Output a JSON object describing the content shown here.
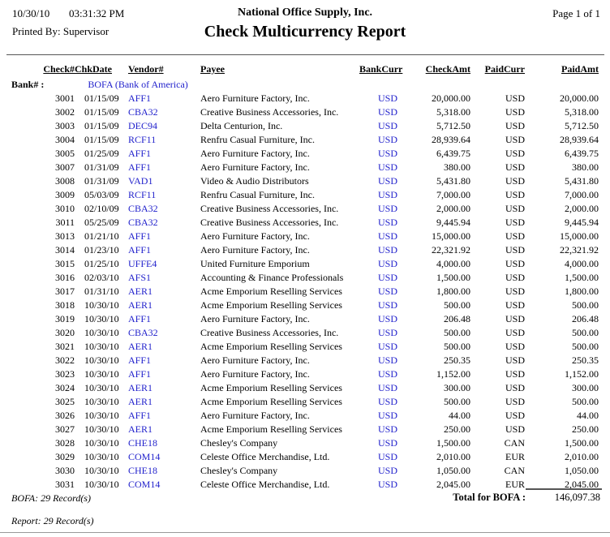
{
  "header": {
    "date": "10/30/10",
    "time": "03:31:32 PM",
    "company": "National Office Supply, Inc.",
    "page": "Page 1 of 1",
    "printed_by": "Printed By: Supervisor",
    "title": "Check Multicurrency Report"
  },
  "columns": [
    "Check#",
    "ChkDate",
    "Vendor#",
    "Payee",
    "BankCurr",
    "CheckAmt",
    "PaidCurr",
    "PaidAmt"
  ],
  "bank": {
    "label": "Bank# :",
    "name": "BOFA (Bank of America)"
  },
  "rows": [
    {
      "check": "3001",
      "date": "01/15/09",
      "vendor": "AFF1",
      "payee": "Aero Furniture Factory, Inc.",
      "bank_curr": "USD",
      "check_amt": "20,000.00",
      "paid_curr": "USD",
      "paid_amt": "20,000.00"
    },
    {
      "check": "3002",
      "date": "01/15/09",
      "vendor": "CBA32",
      "payee": "Creative Business Accessories, Inc.",
      "bank_curr": "USD",
      "check_amt": "5,318.00",
      "paid_curr": "USD",
      "paid_amt": "5,318.00"
    },
    {
      "check": "3003",
      "date": "01/15/09",
      "vendor": "DEC94",
      "payee": "Delta Centurion, Inc.",
      "bank_curr": "USD",
      "check_amt": "5,712.50",
      "paid_curr": "USD",
      "paid_amt": "5,712.50"
    },
    {
      "check": "3004",
      "date": "01/15/09",
      "vendor": "RCF11",
      "payee": "Renfru Casual Furniture, Inc.",
      "bank_curr": "USD",
      "check_amt": "28,939.64",
      "paid_curr": "USD",
      "paid_amt": "28,939.64"
    },
    {
      "check": "3005",
      "date": "01/25/09",
      "vendor": "AFF1",
      "payee": "Aero Furniture Factory, Inc.",
      "bank_curr": "USD",
      "check_amt": "6,439.75",
      "paid_curr": "USD",
      "paid_amt": "6,439.75"
    },
    {
      "check": "3007",
      "date": "01/31/09",
      "vendor": "AFF1",
      "payee": "Aero Furniture Factory, Inc.",
      "bank_curr": "USD",
      "check_amt": "380.00",
      "paid_curr": "USD",
      "paid_amt": "380.00"
    },
    {
      "check": "3008",
      "date": "01/31/09",
      "vendor": "VAD1",
      "payee": "Video & Audio Distributors",
      "bank_curr": "USD",
      "check_amt": "5,431.80",
      "paid_curr": "USD",
      "paid_amt": "5,431.80"
    },
    {
      "check": "3009",
      "date": "05/03/09",
      "vendor": "RCF11",
      "payee": "Renfru Casual Furniture, Inc.",
      "bank_curr": "USD",
      "check_amt": "7,000.00",
      "paid_curr": "USD",
      "paid_amt": "7,000.00"
    },
    {
      "check": "3010",
      "date": "02/10/09",
      "vendor": "CBA32",
      "payee": "Creative Business Accessories, Inc.",
      "bank_curr": "USD",
      "check_amt": "2,000.00",
      "paid_curr": "USD",
      "paid_amt": "2,000.00"
    },
    {
      "check": "3011",
      "date": "05/25/09",
      "vendor": "CBA32",
      "payee": "Creative Business Accessories, Inc.",
      "bank_curr": "USD",
      "check_amt": "9,445.94",
      "paid_curr": "USD",
      "paid_amt": "9,445.94"
    },
    {
      "check": "3013",
      "date": "01/21/10",
      "vendor": "AFF1",
      "payee": "Aero Furniture Factory, Inc.",
      "bank_curr": "USD",
      "check_amt": "15,000.00",
      "paid_curr": "USD",
      "paid_amt": "15,000.00"
    },
    {
      "check": "3014",
      "date": "01/23/10",
      "vendor": "AFF1",
      "payee": "Aero Furniture Factory, Inc.",
      "bank_curr": "USD",
      "check_amt": "22,321.92",
      "paid_curr": "USD",
      "paid_amt": "22,321.92"
    },
    {
      "check": "3015",
      "date": "01/25/10",
      "vendor": "UFFE4",
      "payee": "United Furniture Emporium",
      "bank_curr": "USD",
      "check_amt": "4,000.00",
      "paid_curr": "USD",
      "paid_amt": "4,000.00"
    },
    {
      "check": "3016",
      "date": "02/03/10",
      "vendor": "AFS1",
      "payee": "Accounting & Finance Professionals",
      "bank_curr": "USD",
      "check_amt": "1,500.00",
      "paid_curr": "USD",
      "paid_amt": "1,500.00"
    },
    {
      "check": "3017",
      "date": "01/31/10",
      "vendor": "AER1",
      "payee": "Acme Emporium Reselling Services",
      "bank_curr": "USD",
      "check_amt": "1,800.00",
      "paid_curr": "USD",
      "paid_amt": "1,800.00"
    },
    {
      "check": "3018",
      "date": "10/30/10",
      "vendor": "AER1",
      "payee": "Acme Emporium Reselling Services",
      "bank_curr": "USD",
      "check_amt": "500.00",
      "paid_curr": "USD",
      "paid_amt": "500.00"
    },
    {
      "check": "3019",
      "date": "10/30/10",
      "vendor": "AFF1",
      "payee": "Aero Furniture Factory, Inc.",
      "bank_curr": "USD",
      "check_amt": "206.48",
      "paid_curr": "USD",
      "paid_amt": "206.48"
    },
    {
      "check": "3020",
      "date": "10/30/10",
      "vendor": "CBA32",
      "payee": "Creative Business Accessories, Inc.",
      "bank_curr": "USD",
      "check_amt": "500.00",
      "paid_curr": "USD",
      "paid_amt": "500.00"
    },
    {
      "check": "3021",
      "date": "10/30/10",
      "vendor": "AER1",
      "payee": "Acme Emporium Reselling Services",
      "bank_curr": "USD",
      "check_amt": "500.00",
      "paid_curr": "USD",
      "paid_amt": "500.00"
    },
    {
      "check": "3022",
      "date": "10/30/10",
      "vendor": "AFF1",
      "payee": "Aero Furniture Factory, Inc.",
      "bank_curr": "USD",
      "check_amt": "250.35",
      "paid_curr": "USD",
      "paid_amt": "250.35"
    },
    {
      "check": "3023",
      "date": "10/30/10",
      "vendor": "AFF1",
      "payee": "Aero Furniture Factory, Inc.",
      "bank_curr": "USD",
      "check_amt": "1,152.00",
      "paid_curr": "USD",
      "paid_amt": "1,152.00"
    },
    {
      "check": "3024",
      "date": "10/30/10",
      "vendor": "AER1",
      "payee": "Acme Emporium Reselling Services",
      "bank_curr": "USD",
      "check_amt": "300.00",
      "paid_curr": "USD",
      "paid_amt": "300.00"
    },
    {
      "check": "3025",
      "date": "10/30/10",
      "vendor": "AER1",
      "payee": "Acme Emporium Reselling Services",
      "bank_curr": "USD",
      "check_amt": "500.00",
      "paid_curr": "USD",
      "paid_amt": "500.00"
    },
    {
      "check": "3026",
      "date": "10/30/10",
      "vendor": "AFF1",
      "payee": "Aero Furniture Factory, Inc.",
      "bank_curr": "USD",
      "check_amt": "44.00",
      "paid_curr": "USD",
      "paid_amt": "44.00"
    },
    {
      "check": "3027",
      "date": "10/30/10",
      "vendor": "AER1",
      "payee": "Acme Emporium Reselling Services",
      "bank_curr": "USD",
      "check_amt": "250.00",
      "paid_curr": "USD",
      "paid_amt": "250.00"
    },
    {
      "check": "3028",
      "date": "10/30/10",
      "vendor": "CHE18",
      "payee": "Chesley's Company",
      "bank_curr": "USD",
      "check_amt": "1,500.00",
      "paid_curr": "CAN",
      "paid_amt": "1,500.00"
    },
    {
      "check": "3029",
      "date": "10/30/10",
      "vendor": "COM14",
      "payee": "Celeste Office Merchandise, Ltd.",
      "bank_curr": "USD",
      "check_amt": "2,010.00",
      "paid_curr": "EUR",
      "paid_amt": "2,010.00"
    },
    {
      "check": "3030",
      "date": "10/30/10",
      "vendor": "CHE18",
      "payee": "Chesley's Company",
      "bank_curr": "USD",
      "check_amt": "1,050.00",
      "paid_curr": "CAN",
      "paid_amt": "1,050.00"
    },
    {
      "check": "3031",
      "date": "10/30/10",
      "vendor": "COM14",
      "payee": "Celeste Office Merchandise, Ltd.",
      "bank_curr": "USD",
      "check_amt": "2,045.00",
      "paid_curr": "EUR",
      "paid_amt": "2,045.00"
    }
  ],
  "footer": {
    "bank_records": "BOFA: 29 Record(s)",
    "total_label": "Total for BOFA :",
    "total_amount": "146,097.38",
    "report_records": "Report: 29 Record(s)"
  },
  "colors": {
    "link_blue": "#2222CC"
  }
}
